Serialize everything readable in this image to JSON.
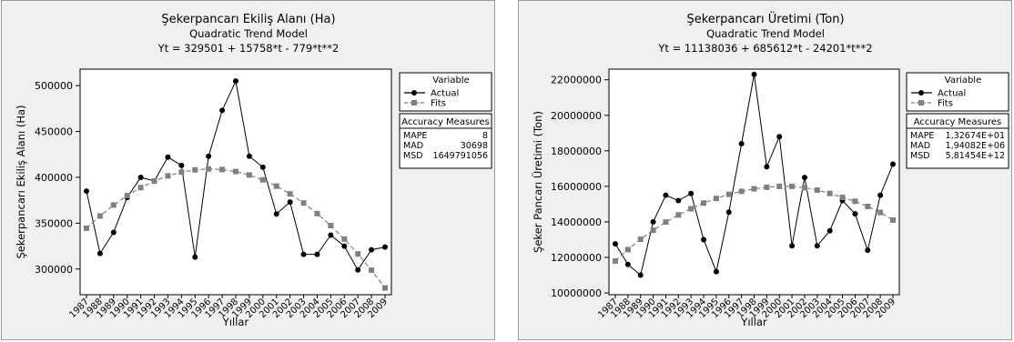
{
  "chart_data": [
    {
      "type": "line",
      "title": "Şekerpancarı Ekiliş Alanı  (Ha)",
      "subtitle": "Quadratic Trend Model",
      "equation": "Yt = 329501 + 15758*t - 779*t**2",
      "xlabel": "Yıllar",
      "ylabel": "Şekerpancarı Ekiliş Alanı  (Ha)",
      "categories": [
        "1987",
        "1988",
        "1989",
        "1990",
        "1991",
        "1992",
        "1993",
        "1994",
        "1995",
        "1996",
        "1997",
        "1998",
        "1999",
        "2000",
        "2001",
        "2002",
        "2003",
        "2004",
        "2005",
        "2006",
        "2007",
        "2008",
        "2009"
      ],
      "ylim": [
        272000,
        518000
      ],
      "yticks": [
        300000,
        350000,
        400000,
        450000,
        500000
      ],
      "ytick_labels": [
        "300000",
        "350000",
        "400000",
        "450000",
        "500000"
      ],
      "series": [
        {
          "name": "Actual",
          "marker": "circle",
          "color": "#000000",
          "dash": false,
          "values": [
            385000,
            317000,
            340000,
            378000,
            400000,
            396000,
            422000,
            413000,
            313000,
            423000,
            473000,
            505000,
            423000,
            411000,
            360000,
            373000,
            316000,
            316000,
            337000,
            325000,
            299000,
            321000,
            324000
          ]
        },
        {
          "name": "Fits",
          "marker": "square",
          "color": "#808080",
          "dash": true,
          "values": [
            344480,
            357900,
            369760,
            380060,
            388800,
            395980,
            401600,
            405660,
            408160,
            409100,
            408480,
            406300,
            402560,
            397260,
            390400,
            381980,
            372000,
            360460,
            347360,
            332700,
            316480,
            298700,
            279360
          ]
        }
      ],
      "legend_title": "Variable",
      "accuracy": {
        "title": "Accuracy Measures",
        "rows": [
          {
            "label": "MAPE",
            "value": "8"
          },
          {
            "label": "MAD",
            "value": "30698"
          },
          {
            "label": "MSD",
            "value": "1649791056"
          }
        ]
      }
    },
    {
      "type": "line",
      "title": "Şekerpancarı Üretimi (Ton)",
      "subtitle": "Quadratic Trend Model",
      "equation": "Yt = 11138036 + 685612*t - 24201*t**2",
      "xlabel": "Yıllar",
      "ylabel": "Şeker Pancarı Üretimi (Ton)",
      "categories": [
        "1987",
        "1988",
        "1989",
        "1990",
        "1991",
        "1992",
        "1993",
        "1994",
        "1995",
        "1996",
        "1997",
        "1998",
        "1999",
        "2000",
        "2001",
        "2002",
        "2003",
        "2004",
        "2005",
        "2006",
        "2007",
        "2008",
        "2009"
      ],
      "ylim": [
        9900000,
        22600000
      ],
      "yticks": [
        10000000,
        12000000,
        14000000,
        16000000,
        18000000,
        20000000,
        22000000
      ],
      "ytick_labels": [
        "10000000",
        "12000000",
        "14000000",
        "16000000",
        "18000000",
        "20000000",
        "22000000"
      ],
      "series": [
        {
          "name": "Actual",
          "marker": "circle",
          "color": "#000000",
          "dash": false,
          "values": [
            12760000,
            11600000,
            11000000,
            14000000,
            15500000,
            15200000,
            15600000,
            13000000,
            11200000,
            14550000,
            18400000,
            22300000,
            17100000,
            18800000,
            12650000,
            16500000,
            12650000,
            13500000,
            15200000,
            14450000,
            12400000,
            15500000,
            17250000
          ]
        },
        {
          "name": "Fits",
          "marker": "square",
          "color": "#808080",
          "dash": true,
          "values": [
            11800000,
            12440000,
            13020000,
            13530000,
            13990000,
            14390000,
            14740000,
            15060000,
            15320000,
            15550000,
            15720000,
            15860000,
            15950000,
            16000000,
            16000000,
            15920000,
            15790000,
            15600000,
            15380000,
            15160000,
            14870000,
            14530000,
            14100000
          ]
        }
      ],
      "legend_title": "Variable",
      "accuracy": {
        "title": "Accuracy Measures",
        "rows": [
          {
            "label": "MAPE",
            "value": "1,32674E+01"
          },
          {
            "label": "MAD",
            "value": "1,94082E+06"
          },
          {
            "label": "MSD",
            "value": "5,81454E+12"
          }
        ]
      }
    }
  ]
}
